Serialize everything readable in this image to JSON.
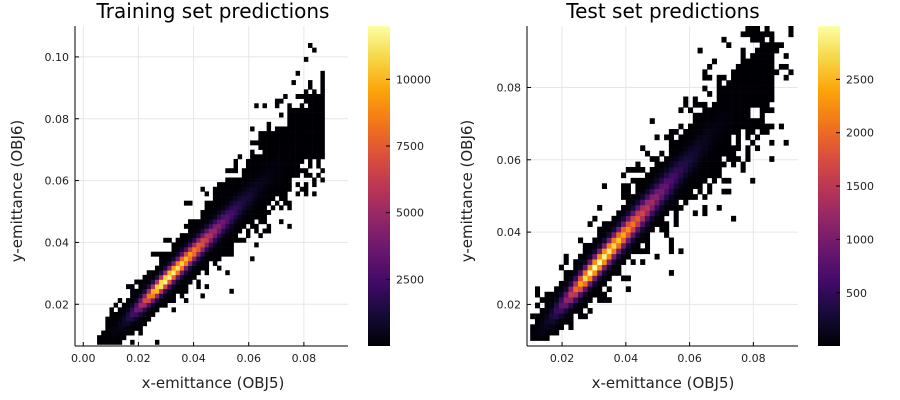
{
  "chart_data": [
    {
      "type": "heatmap",
      "title": "Training set predictions",
      "xlabel": "x-emittance (OBJ5)",
      "ylabel": "y-emittance (OBJ6)",
      "xlim": [
        -0.003,
        0.096
      ],
      "ylim": [
        0.0065,
        0.11
      ],
      "xticks": [
        0.0,
        0.02,
        0.04,
        0.06,
        0.08
      ],
      "xtick_labels": [
        "0.00",
        "0.02",
        "0.04",
        "0.06",
        "0.08"
      ],
      "yticks": [
        0.02,
        0.04,
        0.06,
        0.08,
        0.1
      ],
      "ytick_labels": [
        "0.02",
        "0.04",
        "0.06",
        "0.08",
        "0.10"
      ],
      "grid": true,
      "colormap": "inferno",
      "colorbar": {
        "min": 1,
        "max": 12000,
        "ticks": [
          2500,
          5000,
          7500,
          10000
        ],
        "tick_labels": [
          "2500",
          "5000",
          "7500",
          "10000"
        ]
      },
      "bins": {
        "dx": 0.0015,
        "dy": 0.0015
      },
      "peak": {
        "x": 0.029,
        "y": 0.029,
        "count": 12000
      },
      "diagonal_band": {
        "x0": 0.012,
        "y0": 0.012,
        "x1": 0.085,
        "y1": 0.077
      },
      "cloud_extent": {
        "x": [
          0.005,
          0.087
        ],
        "y": [
          0.007,
          0.108
        ]
      }
    },
    {
      "type": "heatmap",
      "title": "Test set predictions",
      "xlabel": "x-emittance (OBJ5)",
      "ylabel": "y-emittance (OBJ6)",
      "xlim": [
        0.009,
        0.094
      ],
      "ylim": [
        0.0085,
        0.097
      ],
      "xticks": [
        0.02,
        0.04,
        0.06,
        0.08
      ],
      "xtick_labels": [
        "0.02",
        "0.04",
        "0.06",
        "0.08"
      ],
      "yticks": [
        0.02,
        0.04,
        0.06,
        0.08
      ],
      "ytick_labels": [
        "0.02",
        "0.04",
        "0.06",
        "0.08"
      ],
      "grid": true,
      "colormap": "inferno",
      "colorbar": {
        "min": 1,
        "max": 3000,
        "ticks": [
          500,
          1000,
          1500,
          2000,
          2500
        ],
        "tick_labels": [
          "500",
          "1000",
          "1500",
          "2000",
          "2500"
        ]
      },
      "bins": {
        "dx": 0.0015,
        "dy": 0.0015
      },
      "peak": {
        "x": 0.03,
        "y": 0.03,
        "count": 3000
      },
      "diagonal_band": {
        "x0": 0.012,
        "y0": 0.012,
        "x1": 0.08,
        "y1": 0.08
      },
      "cloud_extent": {
        "x": [
          0.01,
          0.092
        ],
        "y": [
          0.01,
          0.096
        ]
      }
    }
  ]
}
